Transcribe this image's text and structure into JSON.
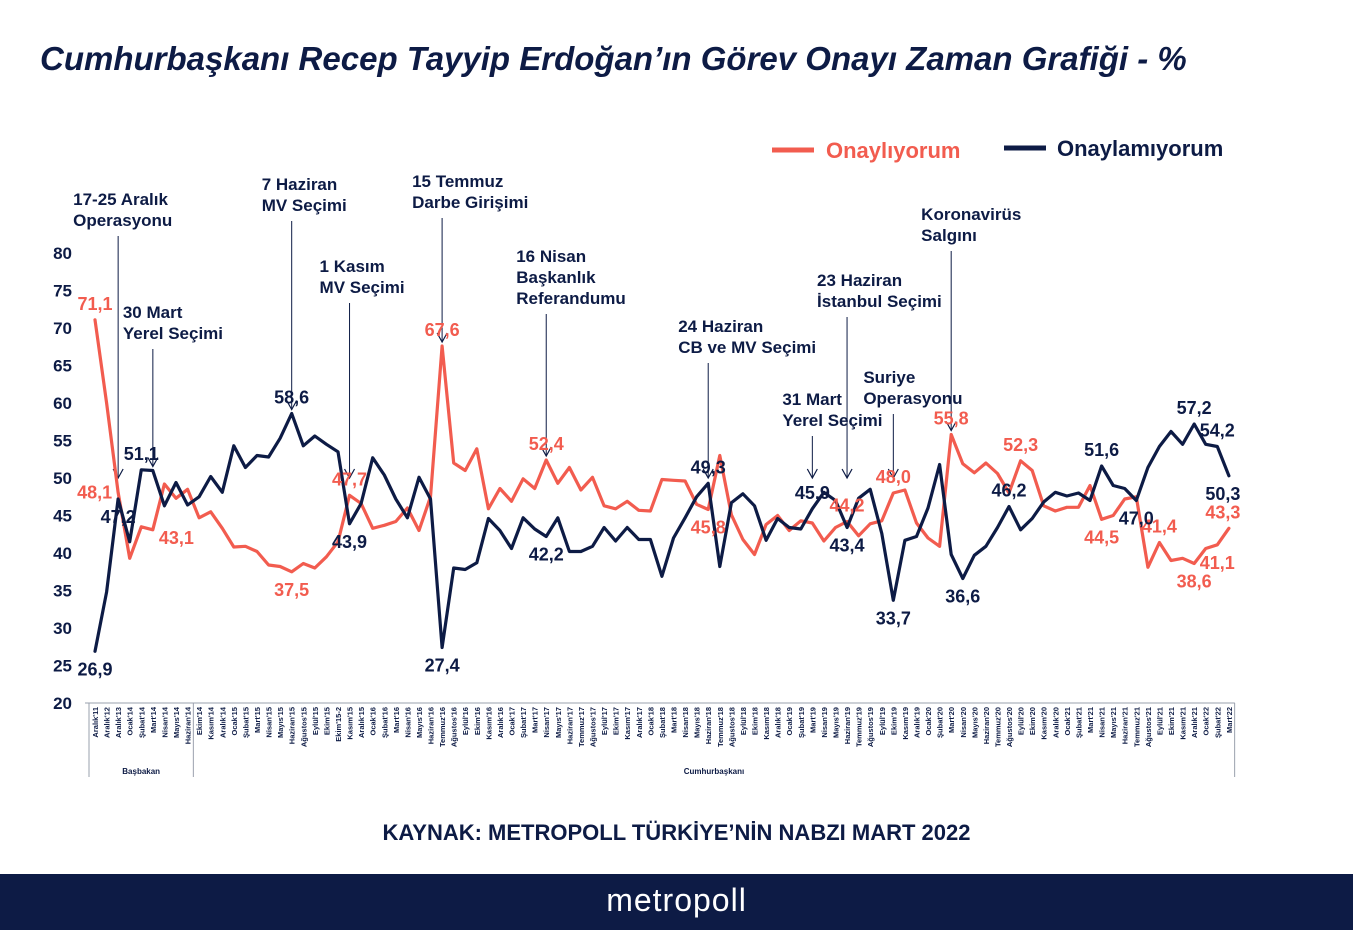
{
  "title": "Cumhurbaşkanı Recep Tayyip Erdoğan’ın Görev Onayı Zaman Grafiği - %",
  "source": "KAYNAK: METROPOLL TÜRKİYE’NİN NABZI MART 2022",
  "brand": "metropoll",
  "chart_data": {
    "type": "line",
    "title": "Cumhurbaşkanı Recep Tayyip Erdoğan’ın Görev Onayı Zaman Grafiği - %",
    "ylim": [
      20,
      80
    ],
    "yticks": [
      20,
      25,
      30,
      35,
      40,
      45,
      50,
      55,
      60,
      65,
      70,
      75,
      80
    ],
    "grid": false,
    "legend_position": "top-right",
    "colors": {
      "approve": "#f25c4f",
      "disapprove": "#0d1b45",
      "text": "#0d1b45"
    },
    "categories": [
      "Aralık'11",
      "Aralık'12",
      "Aralık'13",
      "Ocak'14",
      "Şubat'14",
      "Mart'14",
      "Nisan'14",
      "Mayıs'14",
      "Haziran'14",
      "Ekim'14",
      "Kasım'14",
      "Aralık'14",
      "Ocak'15",
      "Şubat'15",
      "Mart'15",
      "Nisan'15",
      "Mayıs'15",
      "Haziran'15",
      "Ağustos'15",
      "Eylül'15",
      "Ekim'15",
      "Ekim'15-2",
      "Kasım'15",
      "Aralık'15",
      "Ocak'16",
      "Şubat'16",
      "Mart'16",
      "Nisan'16",
      "Mayıs'16",
      "Haziran'16",
      "Temmuz'16",
      "Ağustos'16",
      "Eylül'16",
      "Ekim'16",
      "Kasım'16",
      "Aralık'16",
      "Ocak'17",
      "Şubat'17",
      "Mart'17",
      "Nisan'17",
      "Mayıs'17",
      "Haziran'17",
      "Temmuz'17",
      "Ağustos'17",
      "Eylül'17",
      "Ekim'17",
      "Kasım'17",
      "Aralık'17",
      "Ocak'18",
      "Şubat'18",
      "Mart'18",
      "Nisan'18",
      "Mayıs'18",
      "Haziran'18",
      "Temmuz'18",
      "Ağustos'18",
      "Eylül'18",
      "Ekim'18",
      "Kasım'18",
      "Aralık'18",
      "Ocak'19",
      "Şubat'19",
      "Mart'19",
      "Nisan'19",
      "Mayıs'19",
      "Haziran'19",
      "Temmuz'19",
      "Ağustos'19",
      "Eylül'19",
      "Ekim'19",
      "Kasım'19",
      "Aralık'19",
      "Ocak'20",
      "Şubat'20",
      "Mart'20",
      "Nisan'20",
      "Mayıs'20",
      "Haziran'20",
      "Temmuz'20",
      "Ağustos'20",
      "Eylül'20",
      "Ekim'20",
      "Kasım'20",
      "Aralık'20",
      "Ocak'21",
      "Şubat'21",
      "Mart'21",
      "Nisan'21",
      "Mayıs'21",
      "Haziran'21",
      "Temmuz'21",
      "Ağustos'21",
      "Eylül'21",
      "Ekim'21",
      "Kasım'21",
      "Aralık'21",
      "Ocak'22",
      "Şubat'22",
      "Mart'22"
    ],
    "series": [
      {
        "key": "approve",
        "name": "Onaylıyorum",
        "values": [
          71.1,
          60.0,
          48.1,
          39.3,
          43.5,
          43.1,
          49.2,
          47.3,
          48.5,
          44.7,
          45.5,
          43.3,
          40.8,
          40.9,
          40.2,
          38.4,
          38.2,
          37.5,
          38.6,
          38.0,
          39.5,
          41.5,
          47.7,
          46.6,
          43.3,
          43.7,
          44.2,
          46.0,
          43.0,
          47.5,
          67.6,
          52.0,
          51.0,
          53.9,
          45.9,
          48.6,
          46.9,
          49.9,
          48.6,
          52.4,
          49.3,
          51.4,
          48.4,
          50.1,
          46.3,
          45.9,
          46.9,
          45.7,
          45.6,
          49.8,
          49.7,
          49.6,
          46.5,
          45.8,
          53.0,
          45.1,
          41.8,
          39.8,
          43.8,
          45.0,
          43.0,
          44.3,
          44.0,
          41.6,
          43.4,
          44.2,
          42.3,
          43.9,
          44.3,
          48.0,
          48.4,
          44.0,
          42.0,
          40.9,
          55.8,
          51.9,
          50.7,
          52.0,
          50.6,
          48.0,
          52.3,
          51.0,
          46.3,
          45.6,
          46.1,
          46.1,
          49.0,
          44.5,
          45.0,
          47.2,
          47.5,
          38.1,
          41.4,
          39.0,
          39.3,
          38.6,
          40.6,
          41.1,
          43.3
        ]
      },
      {
        "key": "disapprove",
        "name": "Onaylamıyorum",
        "values": [
          26.9,
          34.8,
          47.2,
          41.5,
          51.1,
          51.0,
          46.3,
          49.4,
          46.4,
          47.5,
          50.2,
          48.1,
          54.3,
          51.4,
          53.0,
          52.8,
          55.3,
          58.6,
          54.3,
          55.6,
          54.5,
          53.5,
          43.9,
          46.6,
          52.7,
          50.4,
          47.2,
          44.7,
          50.1,
          47.2,
          27.4,
          38.0,
          37.8,
          38.7,
          44.6,
          43.0,
          40.6,
          44.7,
          43.2,
          42.2,
          44.7,
          40.2,
          40.2,
          40.9,
          43.4,
          41.6,
          43.4,
          41.8,
          41.8,
          36.9,
          42.0,
          44.7,
          47.5,
          49.3,
          38.2,
          46.7,
          47.9,
          46.3,
          41.7,
          44.6,
          43.4,
          43.2,
          45.9,
          48.1,
          47.0,
          43.4,
          47.3,
          48.5,
          42.6,
          33.7,
          41.7,
          42.2,
          46.0,
          51.8,
          39.8,
          36.6,
          39.7,
          40.9,
          43.4,
          46.2,
          43.1,
          44.6,
          46.8,
          48.1,
          47.6,
          48.0,
          47.0,
          51.6,
          49.0,
          48.6,
          47.0,
          51.4,
          54.2,
          56.2,
          54.5,
          57.2,
          54.5,
          54.2,
          50.3
        ]
      }
    ],
    "value_labels": [
      {
        "series": "approve",
        "index": 0,
        "text": "71,1",
        "pos": "above"
      },
      {
        "series": "approve",
        "index": 2,
        "text": "48,1",
        "pos": "left"
      },
      {
        "series": "approve",
        "index": 5,
        "text": "43,1",
        "pos": "right"
      },
      {
        "series": "approve",
        "index": 17,
        "text": "37,5",
        "pos": "below"
      },
      {
        "series": "approve",
        "index": 22,
        "text": "47,7",
        "pos": "above"
      },
      {
        "series": "approve",
        "index": 30,
        "text": "67,6",
        "pos": "above"
      },
      {
        "series": "approve",
        "index": 39,
        "text": "52,4",
        "pos": "above"
      },
      {
        "series": "approve",
        "index": 53,
        "text": "45,8",
        "pos": "below"
      },
      {
        "series": "approve",
        "index": 65,
        "text": "44,2",
        "pos": "above"
      },
      {
        "series": "approve",
        "index": 69,
        "text": "48,0",
        "pos": "above"
      },
      {
        "series": "approve",
        "index": 74,
        "text": "55,8",
        "pos": "above"
      },
      {
        "series": "approve",
        "index": 80,
        "text": "52,3",
        "pos": "above"
      },
      {
        "series": "approve",
        "index": 87,
        "text": "44,5",
        "pos": "below"
      },
      {
        "series": "approve",
        "index": 92,
        "text": "41,4",
        "pos": "above"
      },
      {
        "series": "approve",
        "index": 95,
        "text": "38,6",
        "pos": "below"
      },
      {
        "series": "approve",
        "index": 97,
        "text": "41,1",
        "pos": "below"
      },
      {
        "series": "approve",
        "index": 98,
        "text": "43,3",
        "pos": "above"
      },
      {
        "series": "disapprove",
        "index": 0,
        "text": "26,9",
        "pos": "below"
      },
      {
        "series": "disapprove",
        "index": 2,
        "text": "47,2",
        "pos": "below"
      },
      {
        "series": "disapprove",
        "index": 4,
        "text": "51,1",
        "pos": "above"
      },
      {
        "series": "disapprove",
        "index": 17,
        "text": "58,6",
        "pos": "above"
      },
      {
        "series": "disapprove",
        "index": 22,
        "text": "43,9",
        "pos": "below"
      },
      {
        "series": "disapprove",
        "index": 30,
        "text": "27,4",
        "pos": "below"
      },
      {
        "series": "disapprove",
        "index": 39,
        "text": "42,2",
        "pos": "below"
      },
      {
        "series": "disapprove",
        "index": 53,
        "text": "49,3",
        "pos": "above"
      },
      {
        "series": "disapprove",
        "index": 62,
        "text": "45,9",
        "pos": "above"
      },
      {
        "series": "disapprove",
        "index": 65,
        "text": "43,4",
        "pos": "below"
      },
      {
        "series": "disapprove",
        "index": 69,
        "text": "33,7",
        "pos": "below"
      },
      {
        "series": "disapprove",
        "index": 75,
        "text": "36,6",
        "pos": "below"
      },
      {
        "series": "disapprove",
        "index": 79,
        "text": "46,2",
        "pos": "above"
      },
      {
        "series": "disapprove",
        "index": 87,
        "text": "51,6",
        "pos": "above"
      },
      {
        "series": "disapprove",
        "index": 90,
        "text": "47,0",
        "pos": "below"
      },
      {
        "series": "disapprove",
        "index": 95,
        "text": "57,2",
        "pos": "above"
      },
      {
        "series": "disapprove",
        "index": 97,
        "text": "54,2",
        "pos": "above"
      },
      {
        "series": "disapprove",
        "index": 98,
        "text": "50,3",
        "pos": "below"
      }
    ],
    "annotations": [
      {
        "index": 2,
        "lines": [
          "17-25 Aralık",
          "Operasyonu"
        ]
      },
      {
        "index": 5,
        "lines": [
          "30 Mart",
          "Yerel Seçimi"
        ]
      },
      {
        "index": 17,
        "lines": [
          "7 Haziran",
          "MV Seçimi"
        ]
      },
      {
        "index": 22,
        "lines": [
          "1 Kasım",
          "MV Seçimi"
        ]
      },
      {
        "index": 30,
        "lines": [
          "15 Temmuz",
          "Darbe Girişimi"
        ]
      },
      {
        "index": 39,
        "lines": [
          "16 Nisan",
          "Başkanlık",
          "Referandumu"
        ]
      },
      {
        "index": 53,
        "lines": [
          "24 Haziran",
          "CB  ve MV Seçimi"
        ]
      },
      {
        "index": 62,
        "lines": [
          "31 Mart",
          "Yerel Seçimi"
        ]
      },
      {
        "index": 65,
        "lines": [
          "23 Haziran",
          "İstanbul Seçimi"
        ]
      },
      {
        "index": 69,
        "lines": [
          "Suriye",
          "Operasyonu"
        ]
      },
      {
        "index": 74,
        "lines": [
          "Koronavirüs",
          "Salgını"
        ]
      }
    ],
    "periods": [
      {
        "label": "Başbakan",
        "start": 0,
        "end": 8
      },
      {
        "label": "Cumhurbaşkanı",
        "start": 9,
        "end": 98
      }
    ]
  },
  "legend": {
    "approve": "Onaylıyorum",
    "disapprove": "Onaylamıyorum"
  }
}
